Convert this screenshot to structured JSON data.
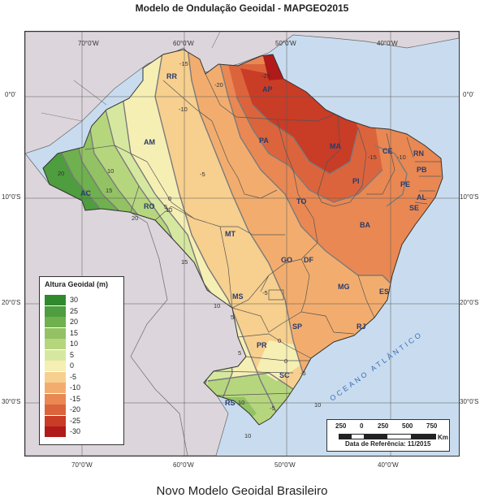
{
  "title": "Modelo de Ondulação Geoidal - MAPGEO2015",
  "caption": "Novo Modelo Geoidal Brasileiro",
  "north_label": "N",
  "ocean_label": "OCEANO ATLÂNTICO",
  "longitude_labels": [
    "70°0'W",
    "60°0'W",
    "50°0'W",
    "40°0'W"
  ],
  "latitude_labels": [
    "0°0'",
    "10°0'S",
    "20°0'S",
    "30°0'S"
  ],
  "legend": {
    "title": "Altura Geoidal (m)",
    "classes": [
      {
        "label": "30",
        "color": "#2f8a2e"
      },
      {
        "label": "25",
        "color": "#4e9d3e"
      },
      {
        "label": "20",
        "color": "#6fb04f"
      },
      {
        "label": "15",
        "color": "#92c263"
      },
      {
        "label": "10",
        "color": "#b6d67e"
      },
      {
        "label": "5",
        "color": "#d6e8a0"
      },
      {
        "label": "0",
        "color": "#f6efb4"
      },
      {
        "label": "-5",
        "color": "#f7cf8e"
      },
      {
        "label": "-10",
        "color": "#f2ad6e"
      },
      {
        "label": "-15",
        "color": "#e98853"
      },
      {
        "label": "-20",
        "color": "#dc643c"
      },
      {
        "label": "-25",
        "color": "#c93c26"
      },
      {
        "label": "-30",
        "color": "#b01a1a"
      }
    ]
  },
  "scale": {
    "labels": [
      "250",
      "0",
      "250",
      "500",
      "750"
    ],
    "unit": "Km",
    "date_text": "Data de Referência: 11/2015"
  },
  "states": [
    "RR",
    "AP",
    "AM",
    "PA",
    "MA",
    "CE",
    "RN",
    "PB",
    "PE",
    "AL",
    "SE",
    "PI",
    "AC",
    "RO",
    "TO",
    "BA",
    "MT",
    "GO",
    "DF",
    "MG",
    "ES",
    "MS",
    "SP",
    "RJ",
    "PR",
    "SC",
    "RS"
  ],
  "contour_labels": [
    "-15",
    "-25",
    "-20",
    "-10",
    "-15",
    "-10",
    "-5",
    "0",
    "5",
    "10",
    "15",
    "20",
    "20",
    "10",
    "15",
    "10",
    "5",
    "5",
    "0",
    "-5",
    "10",
    "-5",
    "10",
    "-5",
    "0",
    "10"
  ],
  "colors": {
    "ocean": "#c9dcef",
    "neighbor": "#dcd6dc",
    "border": "#555555"
  }
}
